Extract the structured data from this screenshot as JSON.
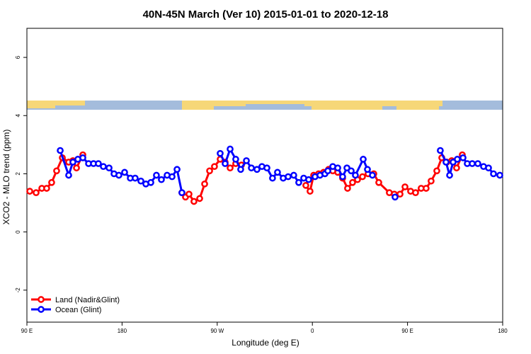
{
  "chart_data": {
    "type": "line",
    "title": "40N-45N March (Ver 10)   2015-01-01 to 2020-12-18",
    "x_label": "Longitude (deg E)",
    "y_label": "XCO2 - MLO trend (ppm)",
    "xlim": [
      90,
      540
    ],
    "xticks": [
      {
        "value": 90,
        "label": "90 E"
      },
      {
        "value": 180,
        "label": "180"
      },
      {
        "value": 270,
        "label": "90 W"
      },
      {
        "value": 360,
        "label": "0"
      },
      {
        "value": 450,
        "label": "90 E"
      },
      {
        "value": 540,
        "label": "180"
      }
    ],
    "ylim": [
      -3.1,
      7.0
    ],
    "yticks": [
      -2,
      0,
      2,
      4,
      6
    ],
    "legend": "bottom-left",
    "series": [
      {
        "name": "Land (Nadir&Glint)",
        "color": "#ff0000",
        "x": [
          92.7,
          98.7,
          104.1,
          108.7,
          113.4,
          118.1,
          123.5,
          129.5,
          133.5,
          136.9,
          142.9,
          null,
          236.6,
          240.0,
          243.3,
          248.0,
          253.4,
          258.1,
          262.8,
          267.4,
          272.8,
          277.5,
          282.2,
          287.5,
          292.9,
          null,
          353.8,
          357.8,
          361.2,
          365.9,
          370.6,
          375.3,
          379.3,
          384.0,
          388.6,
          393.3,
          398.0,
          402.7,
          407.4,
          412.7,
          418.1,
          422.8,
          432.8,
          437.5,
          442.9,
          447.6,
          452.9,
          457.6,
          462.9,
          467.6,
          472.3,
          477.7,
          482.4,
          487.1,
          491.8,
          496.4,
          501.8
        ],
        "values": [
          1.4,
          1.35,
          1.5,
          1.5,
          1.7,
          2.1,
          2.55,
          2.4,
          2.45,
          2.2,
          2.65,
          null,
          1.35,
          1.2,
          1.3,
          1.05,
          1.15,
          1.65,
          2.1,
          2.25,
          2.5,
          2.4,
          2.2,
          2.35,
          2.3,
          null,
          1.6,
          1.4,
          1.95,
          2.0,
          2.05,
          2.15,
          2.1,
          2.05,
          1.85,
          1.5,
          1.7,
          1.8,
          1.9,
          2.0,
          2.0,
          1.7,
          1.35,
          1.3,
          1.3,
          1.55,
          1.4,
          1.35,
          1.5,
          1.5,
          1.75,
          2.1,
          2.55,
          2.4,
          2.45,
          2.2,
          2.65
        ]
      },
      {
        "name": "Ocean (Glint)",
        "color": "#0000ff",
        "x": [
          121.5,
          129.5,
          133.5,
          138.2,
          142.9,
          148.3,
          153.0,
          157.6,
          162.3,
          167.7,
          172.4,
          177.0,
          182.4,
          187.8,
          192.4,
          197.8,
          202.5,
          207.2,
          212.5,
          217.2,
          222.6,
          227.3,
          232.0,
          236.6,
          null,
          272.8,
          277.5,
          282.2,
          287.5,
          292.2,
          297.6,
          302.3,
          307.6,
          312.3,
          317.0,
          322.3,
          327.0,
          332.4,
          337.1,
          342.4,
          347.1,
          351.8,
          356.5,
          362.5,
          367.2,
          371.9,
          374.6,
          379.3,
          384.0,
          388.6,
          392.7,
          396.7,
          400.7,
          408.1,
          412.1,
          416.8,
          null,
          438.2,
          null,
          481.0,
          486.4,
          489.8,
          493.1,
          497.1,
          502.5,
          506.5,
          511.2,
          516.5,
          521.9,
          526.6,
          531.3,
          537.3
        ],
        "values": [
          2.8,
          1.95,
          2.4,
          2.5,
          2.55,
          2.35,
          2.35,
          2.35,
          2.25,
          2.2,
          2.0,
          1.95,
          2.05,
          1.85,
          1.85,
          1.75,
          1.65,
          1.7,
          1.95,
          1.8,
          1.95,
          1.9,
          2.15,
          1.35,
          null,
          2.7,
          2.35,
          2.85,
          2.5,
          2.15,
          2.45,
          2.2,
          2.15,
          2.25,
          2.2,
          1.85,
          2.05,
          1.85,
          1.9,
          1.95,
          1.7,
          1.85,
          1.8,
          1.9,
          1.95,
          2.0,
          2.1,
          2.25,
          2.2,
          1.9,
          2.2,
          2.1,
          1.95,
          2.5,
          2.15,
          1.95,
          null,
          1.2,
          null,
          2.8,
          2.4,
          1.95,
          2.4,
          2.5,
          2.55,
          2.35,
          2.35,
          2.35,
          2.25,
          2.2,
          2.0,
          1.95
        ]
      }
    ]
  }
}
